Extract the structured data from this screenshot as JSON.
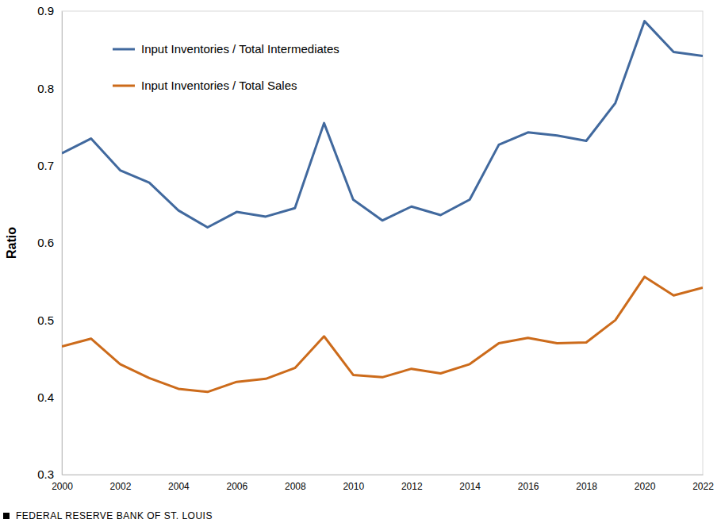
{
  "chart_data": {
    "type": "line",
    "y_label": "Ratio",
    "source": "FEDERAL RESERVE BANK OF ST. LOUIS",
    "x": [
      2000,
      2001,
      2002,
      2003,
      2004,
      2005,
      2006,
      2007,
      2008,
      2009,
      2010,
      2011,
      2012,
      2013,
      2014,
      2015,
      2016,
      2017,
      2018,
      2019,
      2020,
      2021,
      2022
    ],
    "series": [
      {
        "name": "Input Inventories / Total Intermediates",
        "color": "#41699e",
        "values": [
          0.716,
          0.735,
          0.694,
          0.678,
          0.642,
          0.62,
          0.64,
          0.634,
          0.645,
          0.755,
          0.656,
          0.629,
          0.647,
          0.636,
          0.656,
          0.727,
          0.743,
          0.739,
          0.732,
          0.781,
          0.887,
          0.847,
          0.842
        ]
      },
      {
        "name": "Input Inventories / Total Sales",
        "color": "#cc6b1b",
        "values": [
          0.466,
          0.476,
          0.443,
          0.425,
          0.411,
          0.407,
          0.42,
          0.424,
          0.438,
          0.479,
          0.429,
          0.426,
          0.437,
          0.431,
          0.443,
          0.47,
          0.477,
          0.47,
          0.471,
          0.5,
          0.556,
          0.532,
          0.542
        ]
      }
    ],
    "xlim": [
      2000,
      2022
    ],
    "xticks": [
      2000,
      2002,
      2004,
      2006,
      2008,
      2010,
      2012,
      2014,
      2016,
      2018,
      2020,
      2022
    ],
    "ylim": [
      0.3,
      0.9
    ],
    "yticks": [
      0.3,
      0.4,
      0.5,
      0.6,
      0.7,
      0.8,
      0.9
    ],
    "grid": false,
    "legend": "upper left"
  }
}
